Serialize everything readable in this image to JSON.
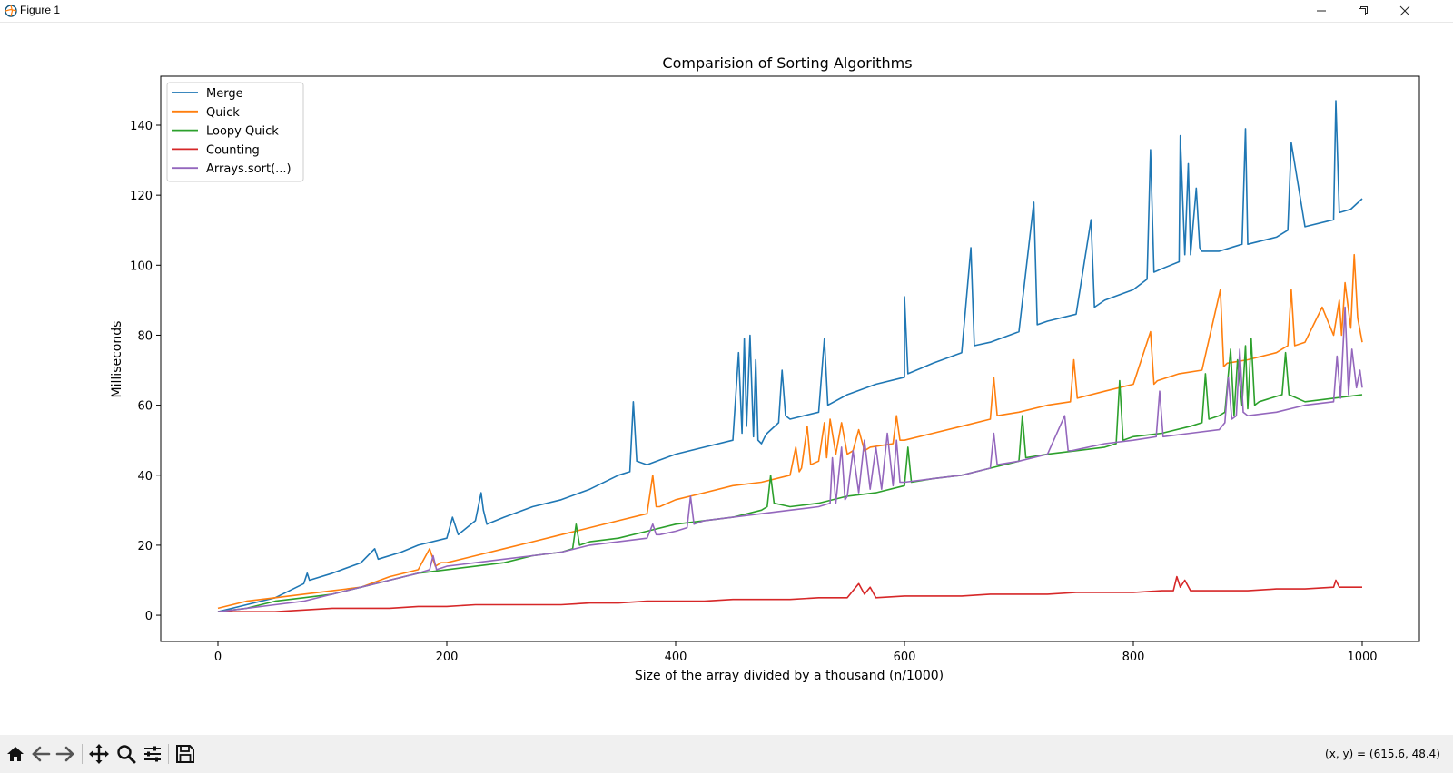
{
  "window": {
    "title": "Figure 1",
    "icons": [
      "figure-app-icon",
      "minimize-icon",
      "restore-icon",
      "close-icon"
    ]
  },
  "toolbar": {
    "tools": [
      "home-icon",
      "back-arrow-icon",
      "forward-arrow-icon",
      "pan-icon",
      "zoom-icon",
      "configure-subplots-icon",
      "save-icon"
    ],
    "coords": "(x, y) = (615.6, 48.4)"
  },
  "colors": {
    "merge": "#1f77b4",
    "quick": "#ff7f0e",
    "loopy_quick": "#2ca02c",
    "counting": "#d62728",
    "arrays_sort": "#9467bd"
  },
  "chart_data": {
    "type": "line",
    "title": "Comparision of Sorting Algorithms",
    "xlabel": "Size of the array divided by a thousand (n/1000)",
    "ylabel": "Milliseconds",
    "xlim": [
      -50,
      1050
    ],
    "ylim": [
      -7.5,
      154
    ],
    "xticks": [
      0,
      200,
      400,
      600,
      800,
      1000
    ],
    "yticks": [
      0,
      20,
      40,
      60,
      80,
      100,
      120,
      140
    ],
    "grid": false,
    "legend": "top-left",
    "series": [
      {
        "name": "Merge",
        "color": "#1f77b4",
        "x": [
          0,
          25,
          50,
          75,
          78,
          80,
          100,
          125,
          137,
          140,
          160,
          175,
          200,
          205,
          208,
          210,
          225,
          230,
          232,
          235,
          250,
          275,
          300,
          325,
          350,
          360,
          363,
          366,
          375,
          400,
          425,
          450,
          455,
          458,
          460,
          462,
          465,
          468,
          470,
          472,
          475,
          478,
          480,
          490,
          493,
          496,
          500,
          525,
          530,
          533,
          550,
          575,
          600,
          600,
          603,
          625,
          650,
          658,
          661,
          675,
          700,
          713,
          716,
          725,
          750,
          763,
          766,
          775,
          800,
          812,
          815,
          818,
          825,
          840,
          841,
          845,
          848,
          850,
          855,
          858,
          860,
          875,
          895,
          898,
          900,
          925,
          935,
          938,
          950,
          975,
          977,
          980,
          990,
          1000
        ],
        "y": [
          1,
          3,
          5,
          9,
          12,
          10,
          12,
          15,
          19,
          16,
          18,
          20,
          22,
          28,
          25,
          23,
          27,
          35,
          30,
          26,
          28,
          31,
          33,
          36,
          40,
          41,
          61,
          44,
          43,
          46,
          48,
          50,
          75,
          52,
          79,
          54,
          80,
          51,
          73,
          50,
          49,
          51,
          52,
          55,
          70,
          57,
          56,
          58,
          79,
          60,
          63,
          66,
          68,
          91,
          69,
          72,
          75,
          105,
          77,
          78,
          81,
          118,
          83,
          84,
          86,
          113,
          88,
          90,
          93,
          96,
          133,
          98,
          99,
          101,
          137,
          103,
          129,
          103,
          122,
          105,
          104,
          104,
          106,
          139,
          106,
          108,
          110,
          135,
          111,
          113,
          147,
          115,
          116,
          119
        ]
      },
      {
        "name": "Quick",
        "color": "#ff7f0e",
        "x": [
          0,
          25,
          50,
          75,
          100,
          125,
          150,
          175,
          185,
          190,
          195,
          200,
          225,
          250,
          275,
          300,
          325,
          350,
          375,
          380,
          383,
          386,
          400,
          425,
          450,
          475,
          500,
          505,
          508,
          510,
          515,
          518,
          525,
          530,
          532,
          535,
          540,
          545,
          550,
          555,
          560,
          565,
          570,
          590,
          593,
          596,
          600,
          625,
          650,
          675,
          678,
          681,
          700,
          725,
          745,
          748,
          751,
          775,
          800,
          815,
          818,
          821,
          840,
          860,
          876,
          879,
          882,
          900,
          925,
          935,
          938,
          941,
          950,
          965,
          975,
          980,
          982,
          985,
          990,
          993,
          996,
          1000
        ],
        "y": [
          2,
          4,
          5,
          6,
          7,
          8,
          11,
          13,
          19,
          14,
          15,
          15,
          17,
          19,
          21,
          23,
          25,
          27,
          29,
          40,
          31,
          31,
          33,
          35,
          37,
          38,
          40,
          48,
          41,
          42,
          54,
          43,
          44,
          55,
          45,
          56,
          46,
          55,
          46,
          47,
          53,
          47,
          48,
          49,
          57,
          50,
          50,
          52,
          54,
          56,
          68,
          57,
          58,
          60,
          61,
          73,
          62,
          64,
          66,
          81,
          66,
          67,
          69,
          70,
          93,
          71,
          72,
          73,
          75,
          77,
          93,
          77,
          78,
          88,
          80,
          90,
          80,
          95,
          82,
          103,
          85,
          78
        ]
      },
      {
        "name": "Loopy Quick",
        "color": "#2ca02c",
        "x": [
          0,
          25,
          50,
          75,
          100,
          125,
          150,
          175,
          200,
          225,
          250,
          275,
          300,
          310,
          313,
          316,
          325,
          350,
          375,
          400,
          425,
          450,
          475,
          480,
          483,
          486,
          500,
          525,
          550,
          575,
          600,
          603,
          606,
          625,
          650,
          675,
          700,
          703,
          706,
          725,
          750,
          775,
          785,
          788,
          791,
          800,
          825,
          850,
          860,
          863,
          866,
          875,
          880,
          885,
          888,
          891,
          895,
          898,
          900,
          903,
          906,
          910,
          920,
          930,
          933,
          936,
          950,
          975,
          1000
        ],
        "y": [
          1,
          2,
          4,
          5,
          6,
          8,
          10,
          12,
          13,
          14,
          15,
          17,
          18,
          19,
          26,
          20,
          21,
          22,
          24,
          26,
          27,
          28,
          30,
          31,
          40,
          32,
          31,
          32,
          34,
          35,
          37,
          48,
          38,
          39,
          40,
          42,
          44,
          57,
          45,
          46,
          47,
          48,
          49,
          67,
          50,
          51,
          52,
          54,
          55,
          69,
          56,
          57,
          58,
          76,
          57,
          73,
          60,
          77,
          59,
          79,
          60,
          61,
          62,
          63,
          75,
          63,
          61,
          62,
          63
        ]
      },
      {
        "name": "Counting",
        "color": "#d62728",
        "x": [
          0,
          25,
          50,
          75,
          100,
          125,
          150,
          175,
          200,
          225,
          250,
          275,
          300,
          325,
          350,
          375,
          400,
          425,
          450,
          475,
          500,
          525,
          550,
          560,
          565,
          570,
          575,
          600,
          625,
          650,
          675,
          700,
          725,
          750,
          775,
          800,
          825,
          835,
          838,
          841,
          845,
          850,
          875,
          900,
          925,
          950,
          975,
          977,
          980,
          1000
        ],
        "y": [
          1,
          1,
          1,
          1.5,
          2,
          2,
          2,
          2.5,
          2.5,
          3,
          3,
          3,
          3,
          3.5,
          3.5,
          4,
          4,
          4,
          4.5,
          4.5,
          4.5,
          5,
          5,
          9,
          6,
          8,
          5,
          5.5,
          5.5,
          5.5,
          6,
          6,
          6,
          6.5,
          6.5,
          6.5,
          7,
          7,
          11,
          8,
          10,
          7,
          7,
          7,
          7.5,
          7.5,
          8,
          10,
          8,
          8
        ]
      },
      {
        "name": "Arrays.sort(...)",
        "color": "#9467bd",
        "x": [
          0,
          25,
          50,
          75,
          100,
          125,
          150,
          175,
          185,
          188,
          191,
          200,
          225,
          250,
          275,
          300,
          325,
          350,
          375,
          380,
          383,
          386,
          400,
          410,
          413,
          416,
          425,
          450,
          475,
          500,
          525,
          535,
          537,
          540,
          545,
          548,
          550,
          555,
          560,
          565,
          570,
          575,
          580,
          585,
          590,
          593,
          596,
          600,
          625,
          650,
          675,
          678,
          681,
          700,
          725,
          740,
          743,
          746,
          775,
          800,
          820,
          823,
          826,
          850,
          875,
          880,
          883,
          886,
          890,
          893,
          896,
          900,
          925,
          950,
          975,
          978,
          981,
          985,
          988,
          991,
          995,
          998,
          1000
        ],
        "y": [
          1,
          2,
          3,
          4,
          6,
          8,
          10,
          12,
          13,
          17,
          13,
          14,
          15,
          16,
          17,
          18,
          20,
          21,
          22,
          26,
          23,
          23,
          24,
          25,
          34,
          26,
          27,
          28,
          29,
          30,
          31,
          32,
          45,
          32,
          48,
          33,
          34,
          47,
          35,
          50,
          36,
          48,
          36,
          52,
          37,
          50,
          38,
          38,
          39,
          40,
          42,
          52,
          43,
          44,
          46,
          57,
          47,
          47,
          49,
          50,
          51,
          64,
          51,
          52,
          53,
          55,
          68,
          56,
          57,
          76,
          58,
          57,
          58,
          60,
          61,
          74,
          62,
          88,
          63,
          76,
          65,
          70,
          65
        ]
      }
    ]
  }
}
